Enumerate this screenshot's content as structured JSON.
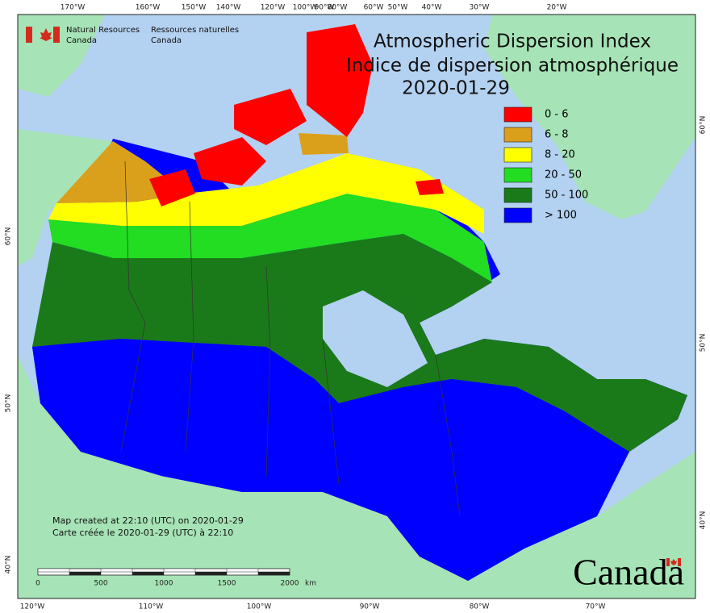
{
  "header": {
    "agency_en": [
      "Natural Resources",
      "Canada"
    ],
    "agency_fr": [
      "Ressources naturelles",
      "Canada"
    ]
  },
  "title": [
    "Atmospheric Dispersion Index",
    "Indice de dispersion atmosphérique",
    "2020-01-29"
  ],
  "legend": [
    {
      "label": "0 - 6",
      "color": "#ff0000"
    },
    {
      "label": "6 - 8",
      "color": "#dba01b"
    },
    {
      "label": "8 - 20",
      "color": "#ffff00"
    },
    {
      "label": "20 - 50",
      "color": "#22dd22"
    },
    {
      "label": "50 - 100",
      "color": "#1a7a1a"
    },
    {
      "label": "> 100",
      "color": "#0000ff"
    }
  ],
  "axes": {
    "top": [
      "170°W",
      "160°W",
      "150°W",
      "140°W",
      "120°W",
      "100°W",
      "90°W",
      "80°W",
      "60°W",
      "50°W",
      "40°W",
      "30°W",
      "20°W"
    ],
    "bottom": [
      "120°W",
      "110°W",
      "100°W",
      "90°W",
      "80°W",
      "70°W"
    ],
    "left": [
      "60°N",
      "50°N",
      "40°N"
    ],
    "right": [
      "60°N",
      "50°N",
      "40°N"
    ]
  },
  "footer": [
    "Map created at 22:10 (UTC) on 2020-01-29",
    "Carte créée le 2020-01-29 (UTC) à 22:10"
  ],
  "scale_bar": {
    "labels": [
      "0",
      "500",
      "1000",
      "1500",
      "2000"
    ],
    "unit": "km"
  },
  "wordmark": "Canada"
}
